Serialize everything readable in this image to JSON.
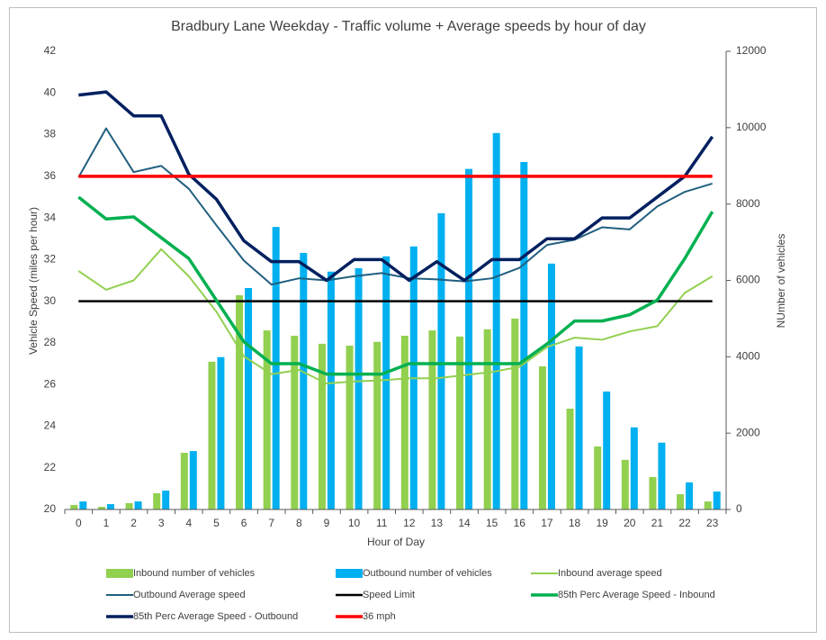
{
  "chart_data": {
    "type": "combo",
    "title": "Bradbury Lane Weekday - Traffic volume + Average speeds by hour of day",
    "x_label": "Hour of Day",
    "y_label": "Vehicle Speed (miles per hour)",
    "y2_label": "NUmber of vehicles",
    "categories": [
      0,
      1,
      2,
      3,
      4,
      5,
      6,
      7,
      8,
      9,
      10,
      11,
      12,
      13,
      14,
      15,
      16,
      17,
      18,
      19,
      20,
      21,
      22,
      23
    ],
    "ylim": [
      20,
      42
    ],
    "yticks": [
      20,
      22,
      24,
      26,
      28,
      30,
      32,
      34,
      36,
      38,
      40,
      42
    ],
    "y2lim": [
      0,
      12000
    ],
    "y2ticks": [
      0,
      2000,
      4000,
      6000,
      8000,
      10000,
      12000
    ],
    "legend": "bottom",
    "series": [
      {
        "name": "Inbound number of vehicles",
        "kind": "bar",
        "axis": "y2",
        "color": "#92d050",
        "values": [
          120,
          70,
          165,
          425,
          1485,
          3870,
          5610,
          4690,
          4550,
          4340,
          4290,
          4390,
          4550,
          4690,
          4530,
          4720,
          5000,
          3750,
          2640,
          1650,
          1300,
          850,
          400,
          210
        ]
      },
      {
        "name": "Outbound number of vehicles",
        "kind": "bar",
        "axis": "y2",
        "color": "#00b0f0",
        "values": [
          210,
          140,
          210,
          495,
          1530,
          3990,
          5800,
          7400,
          6720,
          6230,
          6320,
          6630,
          6890,
          7760,
          8920,
          9860,
          9100,
          6440,
          4270,
          3090,
          2150,
          1750,
          710,
          470
        ]
      },
      {
        "name": "Inbound average speed",
        "kind": "line",
        "color": "#92d050",
        "width": 2,
        "values": [
          31.45,
          30.55,
          31.0,
          32.5,
          31.2,
          29.5,
          27.35,
          26.5,
          26.7,
          26.05,
          26.15,
          26.2,
          26.3,
          26.3,
          26.45,
          26.6,
          26.85,
          27.8,
          28.25,
          28.15,
          28.55,
          28.8,
          30.4,
          31.2
        ]
      },
      {
        "name": "Outbound Average speed",
        "kind": "line",
        "color": "#215f7f",
        "width": 2,
        "values": [
          35.95,
          38.3,
          36.2,
          36.5,
          35.4,
          33.65,
          31.95,
          30.8,
          31.1,
          31.0,
          31.2,
          31.35,
          31.1,
          31.05,
          30.95,
          31.1,
          31.6,
          32.7,
          32.95,
          33.55,
          33.45,
          34.55,
          35.25,
          35.65
        ]
      },
      {
        "name": "Speed Limit",
        "kind": "line",
        "color": "#000000",
        "width": 2.5,
        "values": [
          30,
          30,
          30,
          30,
          30,
          30,
          30,
          30,
          30,
          30,
          30,
          30,
          30,
          30,
          30,
          30,
          30,
          30,
          30,
          30,
          30,
          30,
          30,
          30
        ]
      },
      {
        "name": "85th Perc Average Speed  - Inbound",
        "kind": "line",
        "color": "#00b050",
        "width": 3.5,
        "values": [
          35.0,
          33.95,
          34.05,
          33.05,
          32.05,
          30.05,
          28.05,
          27.0,
          27.0,
          26.5,
          26.5,
          26.5,
          27.0,
          27.0,
          27.0,
          27.0,
          27.0,
          27.95,
          29.05,
          29.05,
          29.35,
          30.05,
          32.05,
          34.3
        ]
      },
      {
        "name": "85th Perc Average Speed  - Outbound",
        "kind": "line",
        "color": "#002060",
        "width": 3.5,
        "values": [
          39.9,
          40.05,
          38.9,
          38.9,
          36.1,
          34.9,
          32.9,
          31.9,
          31.9,
          31.0,
          32.0,
          32.0,
          31.0,
          31.9,
          31.0,
          32.0,
          32.0,
          33.0,
          33.0,
          34.0,
          34.0,
          35.0,
          36.0,
          37.9
        ]
      },
      {
        "name": "36 mph",
        "kind": "line",
        "color": "#ff0000",
        "width": 3.5,
        "values": [
          36,
          36,
          36,
          36,
          36,
          36,
          36,
          36,
          36,
          36,
          36,
          36,
          36,
          36,
          36,
          36,
          36,
          36,
          36,
          36,
          36,
          36,
          36,
          36
        ]
      }
    ]
  }
}
